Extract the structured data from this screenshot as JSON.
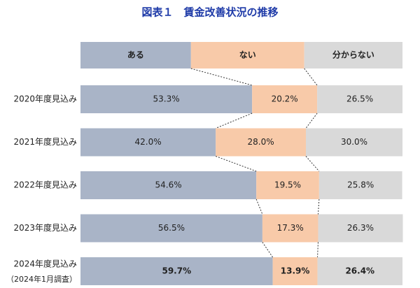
{
  "chart_data": {
    "type": "stacked-bar-100",
    "title": "図表１　賃金改善状況の推移",
    "categories": [
      "2020年度見込み",
      "2021年度見込み",
      "2022年度見込み",
      "2023年度見込み",
      "2024年度見込み"
    ],
    "category_sublabels": [
      null,
      null,
      null,
      null,
      "（2024年1月調査）"
    ],
    "series": [
      {
        "name": "ある",
        "color": "#a9b4c7",
        "values": [
          53.3,
          42.0,
          54.6,
          56.5,
          59.7
        ],
        "value_labels": [
          "53.3%",
          "42.0%",
          "54.6%",
          "56.5%",
          "59.7%"
        ]
      },
      {
        "name": "ない",
        "color": "#f8caa9",
        "values": [
          20.2,
          28.0,
          19.5,
          17.3,
          13.9
        ],
        "value_labels": [
          "20.2%",
          "28.0%",
          "19.5%",
          "17.3%",
          "13.9%"
        ]
      },
      {
        "name": "分からない",
        "color": "#d9d9d9",
        "values": [
          26.5,
          30.0,
          25.8,
          26.3,
          26.4
        ],
        "value_labels": [
          "26.5%",
          "30.0%",
          "25.8%",
          "26.3%",
          "26.4%"
        ]
      }
    ],
    "xlim": [
      0,
      100
    ]
  }
}
